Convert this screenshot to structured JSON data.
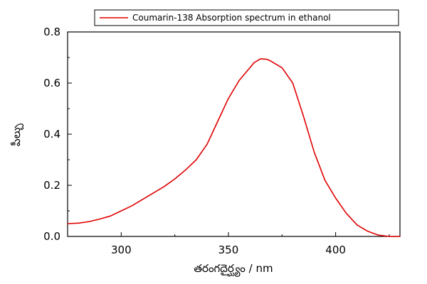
{
  "chart_data": {
    "type": "line",
    "title": "",
    "xlabel": "తరంగదైర్ఘ్యం / nm",
    "ylabel": "పీల్చు",
    "xlim": [
      275,
      430
    ],
    "ylim": [
      0.0,
      0.8
    ],
    "xticks": [
      300,
      350,
      400
    ],
    "yticks": [
      0.0,
      0.2,
      0.4,
      0.6,
      0.8
    ],
    "ytick_labels": [
      "0.0",
      "0.2",
      "0.4",
      "0.6",
      "0.8"
    ],
    "legend_position": "top-right",
    "grid": false,
    "series": [
      {
        "name": "Coumarin-138 Absorption spectrum in ethanol",
        "color": "#e00000",
        "x": [
          275,
          280,
          285,
          290,
          295,
          300,
          305,
          310,
          315,
          320,
          325,
          330,
          335,
          340,
          345,
          350,
          355,
          360,
          362,
          365,
          368,
          370,
          375,
          380,
          385,
          390,
          395,
          400,
          405,
          410,
          415,
          420,
          425,
          430
        ],
        "y": [
          0.05,
          0.052,
          0.058,
          0.068,
          0.08,
          0.1,
          0.12,
          0.145,
          0.17,
          0.195,
          0.225,
          0.26,
          0.3,
          0.36,
          0.45,
          0.54,
          0.61,
          0.66,
          0.68,
          0.695,
          0.693,
          0.685,
          0.66,
          0.6,
          0.47,
          0.33,
          0.22,
          0.15,
          0.09,
          0.045,
          0.02,
          0.005,
          0.0,
          0.0
        ]
      }
    ]
  }
}
